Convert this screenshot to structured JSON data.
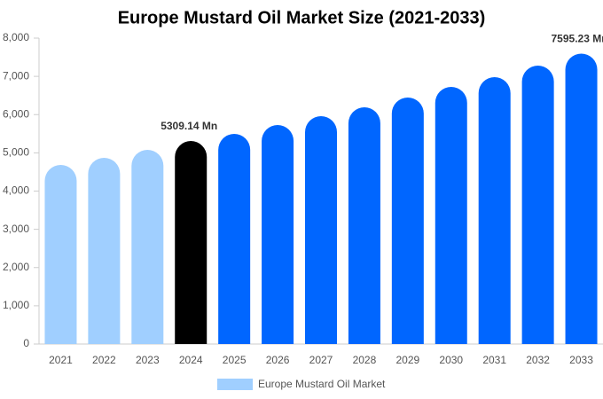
{
  "chart_data": {
    "type": "bar",
    "title": "Europe Mustard Oil Market Size (2021-2033)",
    "categories": [
      "2021",
      "2022",
      "2023",
      "2024",
      "2025",
      "2026",
      "2027",
      "2028",
      "2029",
      "2030",
      "2031",
      "2032",
      "2033"
    ],
    "series": [
      {
        "name": "Europe Mustard Oil Market",
        "color": "#a0cfff",
        "values": [
          4684,
          4870,
          5078,
          5309.14,
          5496,
          5728,
          5959,
          6191,
          6446,
          6725,
          6980,
          7281,
          7595.23
        ],
        "colors": [
          "#a0cfff",
          "#a0cfff",
          "#a0cfff",
          "#000000",
          "#0066ff",
          "#0066ff",
          "#0066ff",
          "#0066ff",
          "#0066ff",
          "#0066ff",
          "#0066ff",
          "#0066ff",
          "#0066ff"
        ],
        "value_labels": [
          null,
          null,
          null,
          "5309.14 Mn",
          null,
          null,
          null,
          null,
          null,
          null,
          null,
          null,
          "7595.23 Mn"
        ]
      }
    ],
    "ylim": [
      0,
      8000
    ],
    "yticks": [
      0,
      {
        "value": 1000,
        "label": "1,000"
      },
      {
        "value": 2000,
        "label": "2,000"
      },
      {
        "value": 3000,
        "label": "3,000"
      },
      {
        "value": 4000,
        "label": "4,000"
      },
      {
        "value": 5000,
        "label": "5,000"
      },
      {
        "value": 6000,
        "label": "6,000"
      },
      {
        "value": 7000,
        "label": "7,000"
      },
      {
        "value": 8000,
        "label": "8,000"
      }
    ],
    "grid": false,
    "legend": "bottom"
  }
}
